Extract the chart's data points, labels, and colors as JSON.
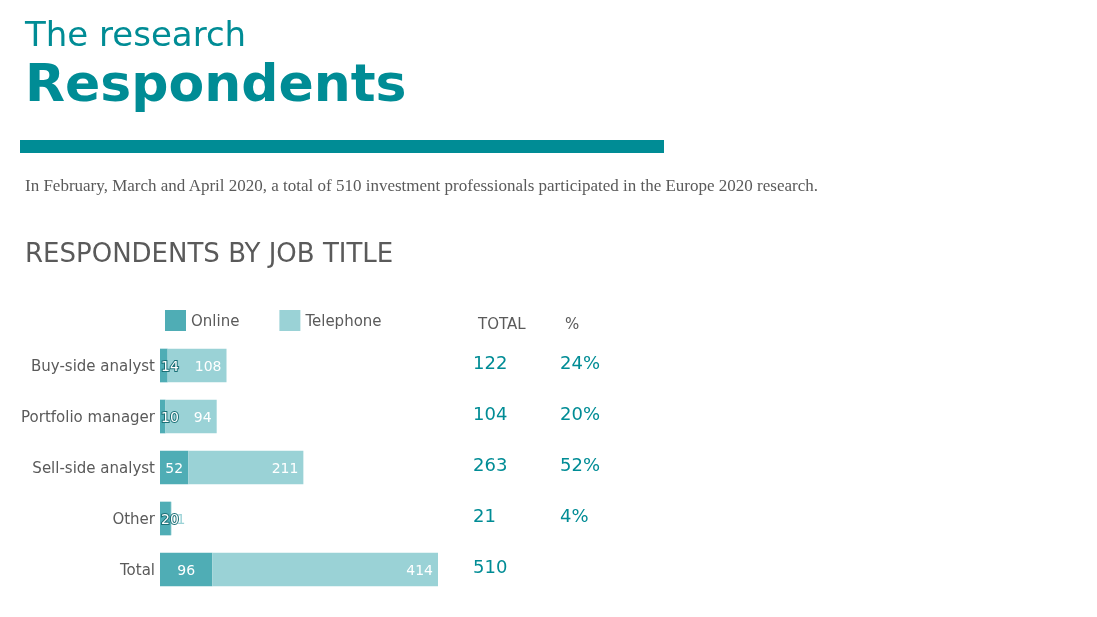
{
  "chart_data": {
    "type": "bar",
    "orientation": "horizontal",
    "stacked": true,
    "title": "Respondents",
    "subtitle": "In February, March and April 2020, a total of 510 investment professionals participated in the Europe 2020 research.",
    "categories": [
      "Buy-side analyst",
      "Portfolio manager",
      "Sell-side analyst",
      "Other",
      "Total"
    ],
    "series": [
      {
        "name": "Online",
        "color": "#4fadb5",
        "values": [
          14,
          10,
          52,
          20,
          96
        ]
      },
      {
        "name": "Telephone",
        "color": "#9ad2d6",
        "values": [
          108,
          94,
          211,
          1,
          414
        ]
      }
    ],
    "data_labels": true,
    "legend": "top left",
    "annotations": [
      "The research",
      "RESPONDENTS BY JOB TITLE",
      "TOTAL",
      "%",
      "122",
      "104",
      "263",
      "21",
      "510",
      "24%",
      "20%",
      "52%",
      "4%"
    ]
  }
}
